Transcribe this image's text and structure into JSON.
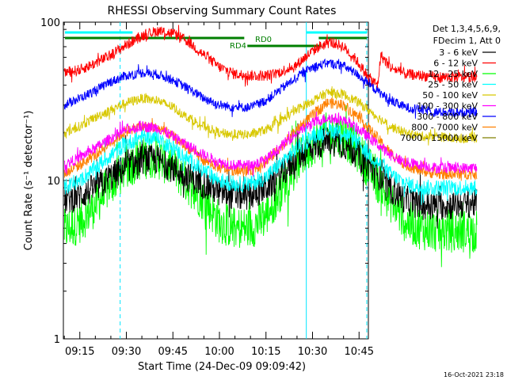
{
  "chart_data": {
    "type": "line",
    "title": "RHESSI Observing Summary Count Rates",
    "xlabel": "Start Time (24-Dec-09 09:09:42)",
    "ylabel": "Count Rate (s⁻¹ detector⁻¹)",
    "yscale": "log",
    "ylim": [
      1,
      100
    ],
    "xlim": [
      "09:09:42",
      "10:48:00"
    ],
    "x_ticks": [
      "09:15",
      "09:30",
      "09:45",
      "10:00",
      "10:15",
      "10:30",
      "10:45"
    ],
    "y_ticks": [
      {
        "value": 100,
        "label": "100"
      },
      {
        "value": 10,
        "label": "10"
      },
      {
        "value": 1,
        "label": "1"
      }
    ],
    "legend": {
      "header": [
        "Det 1,3,4,5,6,9,",
        "FDecim 1, Att 0"
      ],
      "placement": "right"
    },
    "series": [
      {
        "name": "3 - 6 keV",
        "color": "#000000",
        "points": [
          [
            550,
            7.5
          ],
          [
            555,
            8
          ],
          [
            560,
            9
          ],
          [
            565,
            10.5
          ],
          [
            570,
            12
          ],
          [
            575,
            13.5
          ],
          [
            580,
            13.5
          ],
          [
            585,
            12
          ],
          [
            590,
            10.5
          ],
          [
            595,
            9.5
          ],
          [
            600,
            8.5
          ],
          [
            605,
            8
          ],
          [
            610,
            8
          ],
          [
            615,
            9
          ],
          [
            620,
            11
          ],
          [
            625,
            14
          ],
          [
            630,
            16.5
          ],
          [
            635,
            18
          ],
          [
            640,
            17
          ],
          [
            645,
            14.5
          ],
          [
            650,
            11.5
          ],
          [
            655,
            9
          ],
          [
            660,
            7.5
          ],
          [
            665,
            7
          ],
          [
            670,
            7
          ],
          [
            675,
            7
          ],
          [
            680,
            7.2
          ],
          [
            683,
            7.2
          ]
        ]
      },
      {
        "name": "6 - 12 keV",
        "color": "#ff0000",
        "points": [
          [
            550,
            48
          ],
          [
            555,
            50
          ],
          [
            560,
            55
          ],
          [
            565,
            62
          ],
          [
            570,
            72
          ],
          [
            575,
            82
          ],
          [
            580,
            88
          ],
          [
            585,
            85
          ],
          [
            590,
            75
          ],
          [
            595,
            62
          ],
          [
            600,
            52
          ],
          [
            605,
            47
          ],
          [
            610,
            46
          ],
          [
            615,
            46
          ],
          [
            618,
            47
          ],
          [
            621,
            50
          ],
          [
            624,
            52
          ],
          [
            628,
            61
          ],
          [
            632,
            70
          ],
          [
            636,
            75
          ],
          [
            640,
            70
          ],
          [
            644,
            58
          ],
          [
            648,
            45
          ],
          [
            651,
            40
          ],
          [
            652,
            62
          ],
          [
            655,
            52
          ],
          [
            660,
            47
          ],
          [
            665,
            46
          ],
          [
            670,
            45
          ],
          [
            675,
            45
          ],
          [
            680,
            45
          ],
          [
            683,
            45
          ]
        ]
      },
      {
        "name": "12 - 25 keV",
        "color": "#00ff00",
        "points": [
          [
            550,
            4.8
          ],
          [
            555,
            5.5
          ],
          [
            560,
            7
          ],
          [
            565,
            9.5
          ],
          [
            570,
            12
          ],
          [
            575,
            14
          ],
          [
            580,
            14
          ],
          [
            585,
            12
          ],
          [
            590,
            9.5
          ],
          [
            595,
            7.5
          ],
          [
            600,
            5.5
          ],
          [
            605,
            5
          ],
          [
            610,
            5
          ],
          [
            615,
            6
          ],
          [
            620,
            9
          ],
          [
            625,
            13
          ],
          [
            630,
            17
          ],
          [
            635,
            20
          ],
          [
            640,
            19
          ],
          [
            645,
            15
          ],
          [
            650,
            10.5
          ],
          [
            655,
            7.5
          ],
          [
            660,
            5.5
          ],
          [
            665,
            5
          ],
          [
            670,
            4.8
          ],
          [
            675,
            4.8
          ],
          [
            680,
            4.8
          ],
          [
            683,
            4.8
          ]
        ]
      },
      {
        "name": "25 - 50 keV",
        "color": "#00ffff",
        "points": [
          [
            550,
            9
          ],
          [
            555,
            10
          ],
          [
            560,
            12
          ],
          [
            565,
            14.5
          ],
          [
            570,
            17
          ],
          [
            575,
            19
          ],
          [
            580,
            18.5
          ],
          [
            585,
            16
          ],
          [
            590,
            13.5
          ],
          [
            595,
            11.5
          ],
          [
            600,
            10
          ],
          [
            605,
            9.5
          ],
          [
            610,
            9.5
          ],
          [
            615,
            10.5
          ],
          [
            620,
            13
          ],
          [
            625,
            16
          ],
          [
            630,
            19
          ],
          [
            635,
            21
          ],
          [
            640,
            20
          ],
          [
            645,
            17
          ],
          [
            650,
            13.5
          ],
          [
            655,
            11
          ],
          [
            660,
            9.5
          ],
          [
            665,
            9
          ],
          [
            670,
            9
          ],
          [
            675,
            9
          ],
          [
            680,
            9
          ],
          [
            683,
            9
          ]
        ]
      },
      {
        "name": "50 - 100 keV",
        "color": "#d8c800",
        "points": [
          [
            550,
            20
          ],
          [
            555,
            22
          ],
          [
            560,
            25
          ],
          [
            565,
            28
          ],
          [
            570,
            31
          ],
          [
            575,
            33
          ],
          [
            580,
            32
          ],
          [
            585,
            29
          ],
          [
            590,
            25
          ],
          [
            595,
            22
          ],
          [
            600,
            20
          ],
          [
            605,
            19.5
          ],
          [
            610,
            19.5
          ],
          [
            615,
            21
          ],
          [
            620,
            24
          ],
          [
            625,
            28
          ],
          [
            630,
            32
          ],
          [
            635,
            36
          ],
          [
            640,
            35
          ],
          [
            645,
            31
          ],
          [
            650,
            26
          ],
          [
            655,
            22
          ],
          [
            660,
            20
          ],
          [
            665,
            19
          ],
          [
            670,
            19
          ],
          [
            675,
            18.5
          ],
          [
            680,
            18.5
          ],
          [
            683,
            18.5
          ]
        ]
      },
      {
        "name": "100 - 300 keV",
        "color": "#ff00ff",
        "points": [
          [
            550,
            12.5
          ],
          [
            555,
            14
          ],
          [
            560,
            16
          ],
          [
            565,
            18.5
          ],
          [
            570,
            21
          ],
          [
            575,
            22
          ],
          [
            580,
            21.5
          ],
          [
            585,
            19
          ],
          [
            590,
            16.5
          ],
          [
            595,
            14.5
          ],
          [
            600,
            13
          ],
          [
            605,
            12.5
          ],
          [
            610,
            12.5
          ],
          [
            615,
            13.5
          ],
          [
            620,
            16.5
          ],
          [
            625,
            20
          ],
          [
            630,
            23
          ],
          [
            635,
            25
          ],
          [
            640,
            24
          ],
          [
            645,
            21
          ],
          [
            650,
            17.5
          ],
          [
            655,
            14.5
          ],
          [
            660,
            13
          ],
          [
            665,
            12.5
          ],
          [
            670,
            12
          ],
          [
            675,
            12
          ],
          [
            680,
            12
          ],
          [
            683,
            12
          ]
        ]
      },
      {
        "name": "300 - 800 keV",
        "color": "#0000ff",
        "points": [
          [
            550,
            30
          ],
          [
            555,
            33
          ],
          [
            560,
            37
          ],
          [
            565,
            42
          ],
          [
            570,
            46
          ],
          [
            575,
            48
          ],
          [
            580,
            47
          ],
          [
            585,
            43
          ],
          [
            590,
            38
          ],
          [
            595,
            33
          ],
          [
            600,
            30
          ],
          [
            605,
            29
          ],
          [
            610,
            29
          ],
          [
            615,
            32
          ],
          [
            620,
            38
          ],
          [
            625,
            45
          ],
          [
            630,
            52
          ],
          [
            635,
            55
          ],
          [
            640,
            53
          ],
          [
            645,
            46
          ],
          [
            650,
            38
          ],
          [
            655,
            32
          ],
          [
            660,
            29
          ],
          [
            665,
            28
          ],
          [
            670,
            27
          ],
          [
            675,
            27
          ],
          [
            680,
            27
          ],
          [
            683,
            27
          ]
        ]
      },
      {
        "name": "800 - 7000 keV",
        "color": "#ff8000",
        "points": [
          [
            550,
            11
          ],
          [
            555,
            12.5
          ],
          [
            560,
            14.5
          ],
          [
            565,
            17.5
          ],
          [
            570,
            20.5
          ],
          [
            575,
            22
          ],
          [
            580,
            21.5
          ],
          [
            585,
            19
          ],
          [
            590,
            16
          ],
          [
            595,
            13.5
          ],
          [
            600,
            12
          ],
          [
            605,
            11.5
          ],
          [
            610,
            11.5
          ],
          [
            615,
            13
          ],
          [
            620,
            16.5
          ],
          [
            625,
            21
          ],
          [
            630,
            26
          ],
          [
            635,
            31
          ],
          [
            640,
            30
          ],
          [
            645,
            25
          ],
          [
            650,
            19.5
          ],
          [
            655,
            15
          ],
          [
            660,
            12.5
          ],
          [
            665,
            11.5
          ],
          [
            670,
            11
          ],
          [
            675,
            11
          ],
          [
            680,
            11
          ],
          [
            683,
            11
          ]
        ]
      },
      {
        "name": "7000 - 15000 keV",
        "color": "#808000",
        "points": []
      }
    ],
    "annotations": [
      {
        "label": "RD0",
        "kind": "attenuator-state"
      },
      {
        "label": "RD4",
        "kind": "attenuator-state"
      }
    ]
  },
  "footer": {
    "timestamp": "16-Oct-2021 23:18"
  }
}
